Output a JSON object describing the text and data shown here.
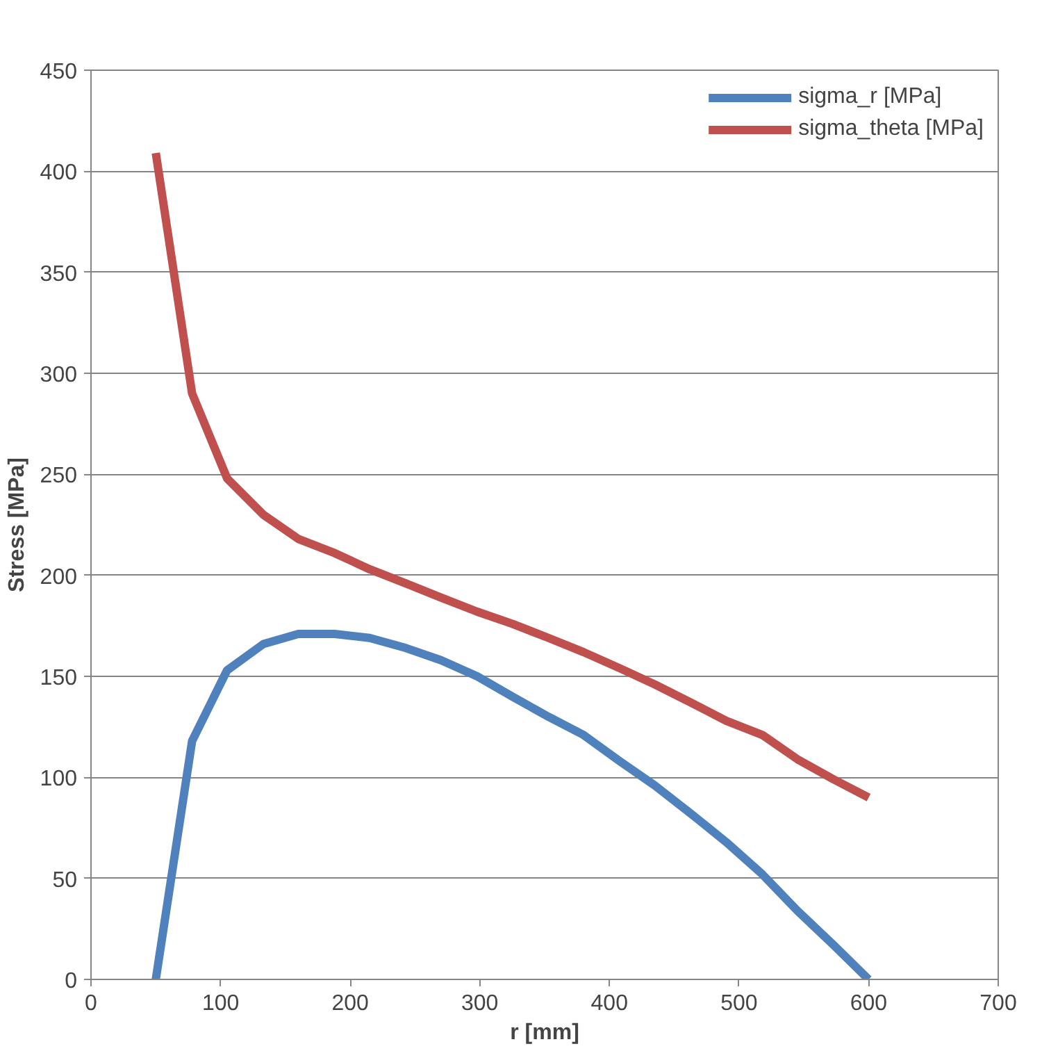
{
  "chart_data": {
    "type": "line",
    "xlabel": "r [mm]",
    "ylabel": "Stress [MPa]",
    "xlim": [
      0,
      700
    ],
    "xticks": [
      0,
      100,
      200,
      300,
      400,
      500,
      600,
      700
    ],
    "ylim": [
      0,
      450
    ],
    "yticks": [
      0,
      50,
      100,
      150,
      200,
      250,
      300,
      350,
      400,
      450
    ],
    "grid": "y",
    "legend": "top right",
    "marker": "none",
    "line_style": "solid",
    "x": [
      50,
      78,
      105,
      133,
      160,
      188,
      215,
      243,
      270,
      298,
      325,
      353,
      380,
      408,
      435,
      463,
      490,
      518,
      545,
      573,
      600
    ],
    "series": [
      {
        "name": "sigma_r [MPa]",
        "color": "#4f81bd",
        "values": [
          0,
          118,
          153,
          166,
          171,
          171,
          169,
          164,
          158,
          150,
          140,
          130,
          121,
          108,
          96,
          82,
          68,
          52,
          34,
          17,
          0
        ]
      },
      {
        "name": "sigma_theta [MPa]",
        "color": "#c0504d",
        "values": [
          409,
          290,
          248,
          230,
          218,
          211,
          203,
          196,
          189,
          182,
          176,
          169,
          162,
          154,
          146,
          137,
          128,
          121,
          109,
          99,
          90
        ]
      }
    ]
  }
}
